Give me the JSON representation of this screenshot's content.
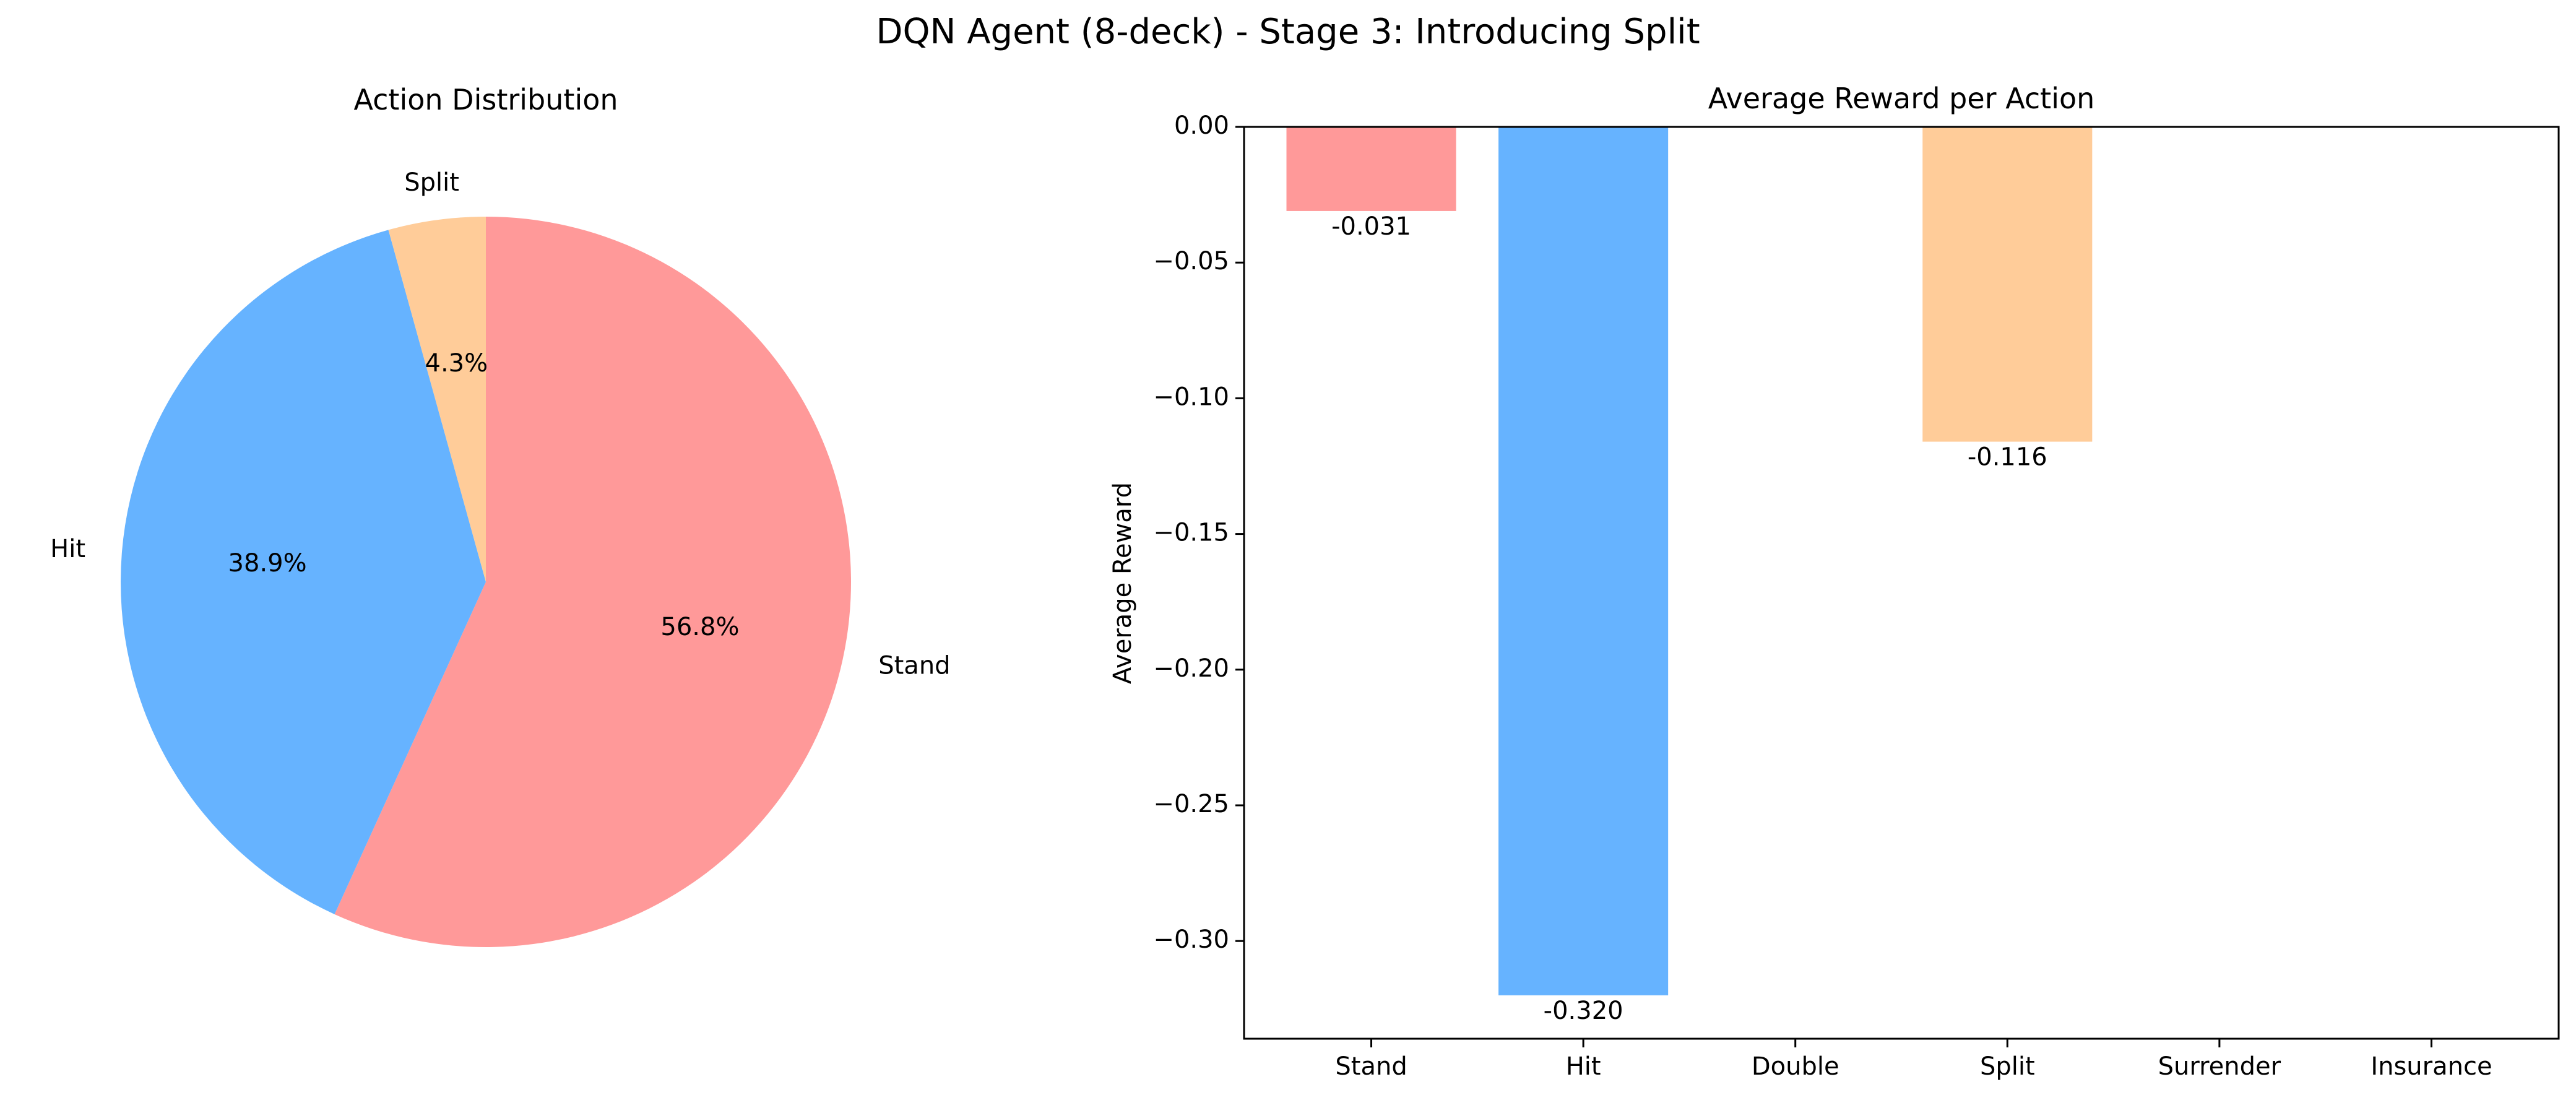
{
  "figure": {
    "title": "DQN Agent (8-deck) - Stage 3: Introducing Split"
  },
  "chart_data": [
    {
      "type": "pie",
      "title": "Action Distribution",
      "slices": [
        {
          "label": "Stand",
          "value": 56.8,
          "pct_label": "56.8%",
          "color": "#ff9999"
        },
        {
          "label": "Hit",
          "value": 38.9,
          "pct_label": "38.9%",
          "color": "#66b3ff"
        },
        {
          "label": "Split",
          "value": 4.3,
          "pct_label": "4.3%",
          "color": "#ffcc99"
        }
      ],
      "start_angle_deg": 90,
      "direction": "clockwise"
    },
    {
      "type": "bar",
      "title": "Average Reward per Action",
      "xlabel": "",
      "ylabel": "Average Reward",
      "categories": [
        "Stand",
        "Hit",
        "Double",
        "Split",
        "Surrender",
        "Insurance"
      ],
      "values": [
        -0.031,
        -0.32,
        null,
        -0.116,
        null,
        null
      ],
      "value_labels": [
        "-0.031",
        "-0.320",
        "",
        "-0.116",
        "",
        ""
      ],
      "colors": [
        "#ff9999",
        "#66b3ff",
        "",
        "#ffcc99",
        "",
        ""
      ],
      "ylim": [
        -0.336,
        0.0
      ],
      "yticks": [
        0.0,
        -0.05,
        -0.1,
        -0.15,
        -0.2,
        -0.25,
        -0.3
      ],
      "ytick_labels": [
        "0.00",
        "−0.05",
        "−0.10",
        "−0.15",
        "−0.20",
        "−0.25",
        "−0.30"
      ],
      "grid": false,
      "legend": false
    }
  ]
}
